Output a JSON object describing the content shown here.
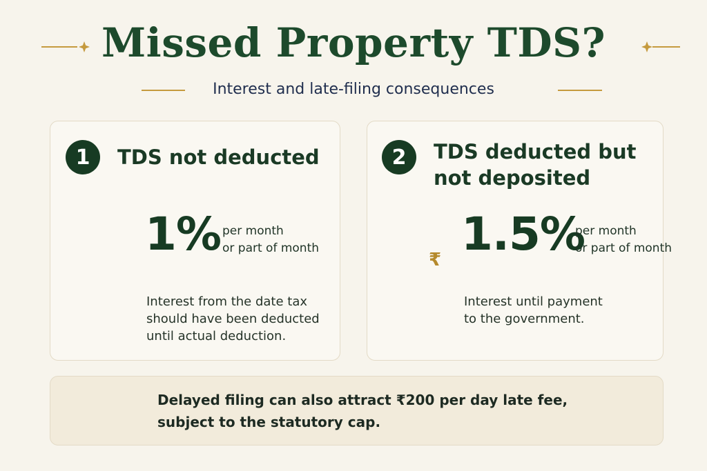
{
  "header": {
    "title": "Missed Property TDS?",
    "subtitle": "Interest and late-filing consequences"
  },
  "cards": [
    {
      "number": "1",
      "title": "TDS not deducted",
      "rate": "1%",
      "rate_note": [
        "per month",
        "or part of month"
      ],
      "description": "Interest from the date tax should have been deducted until actual deduction."
    },
    {
      "number": "2",
      "title": "TDS deducted but not deposited",
      "rate": "1.5%",
      "rate_note": [
        "per month",
        "or part of month"
      ],
      "description": "Interest until payment to the government.",
      "icon_symbol": "₹"
    }
  ],
  "footer": {
    "lines": [
      "Delayed filing can also attract ₹200 per day late fee,",
      "subject to the statutory cap."
    ]
  }
}
